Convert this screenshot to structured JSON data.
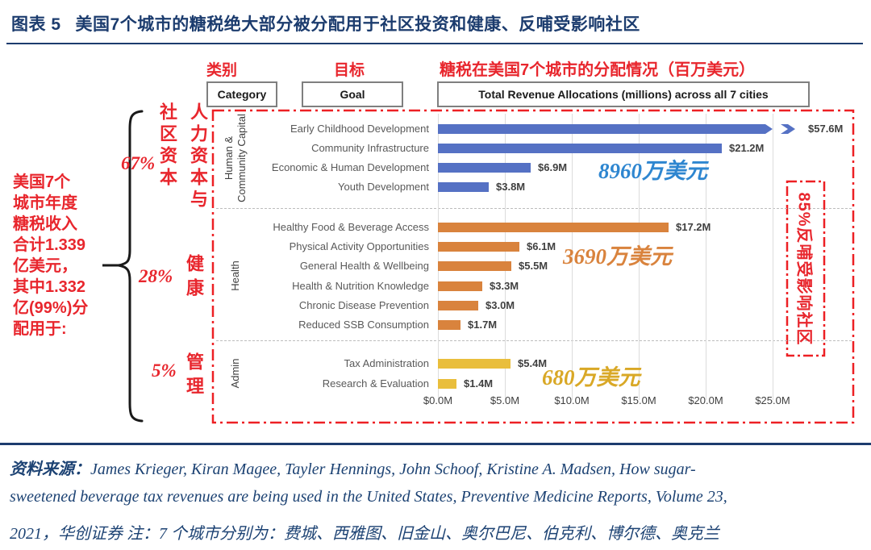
{
  "figure": {
    "label": "图表 5",
    "title": "美国7个城市的糖税绝大部分被分配用于社区投资和健康、反哺受影响社区"
  },
  "header": {
    "category_cn": "类别",
    "goal_cn": "目标",
    "allocation_cn": "糖税在美国7个城市的分配情况（百万美元）",
    "category_box": "Category",
    "goal_box": "Goal",
    "allocation_box": "Total Revenue Allocations (millions) across all 7 cities"
  },
  "left_note": {
    "text": "美国7个\n城市年度\n糖税收入\n合计1.339\n亿美元，\n其中1.332\n亿(99%)分\n配用于:"
  },
  "bracket_groups": [
    {
      "share": "67%",
      "label_vertical": "人力资本与\n社区资本"
    },
    {
      "share": "28%",
      "label_vertical": "健康"
    },
    {
      "share": "5%",
      "label_vertical": "管理"
    }
  ],
  "chart_data": {
    "type": "bar",
    "orientation": "horizontal",
    "title": "Total Revenue Allocations (millions) across all 7 cities",
    "x_axis": {
      "ticks": [
        "$0.0M",
        "$5.0M",
        "$10.0M",
        "$15.0M",
        "$20.0M",
        "$25.0M"
      ],
      "min": 0,
      "max": 25,
      "unit": "millions USD"
    },
    "grid": true,
    "groups": [
      {
        "name": "Human &\nCommunity Capital",
        "color": "#5571C4",
        "items": [
          {
            "label": "Early Childhood Development",
            "value": 57.6,
            "display": "$57.6M",
            "truncated": true
          },
          {
            "label": "Community Infrastructure",
            "value": 21.2,
            "display": "$21.2M"
          },
          {
            "label": "Economic & Human Development",
            "value": 6.9,
            "display": "$6.9M"
          },
          {
            "label": "Youth Development",
            "value": 3.8,
            "display": "$3.8M"
          }
        ]
      },
      {
        "name": "Health",
        "color": "#D9833D",
        "items": [
          {
            "label": "Healthy Food & Beverage Access",
            "value": 17.2,
            "display": "$17.2M"
          },
          {
            "label": "Physical Activity Opportunities",
            "value": 6.1,
            "display": "$6.1M"
          },
          {
            "label": "General Health & Wellbeing",
            "value": 5.5,
            "display": "$5.5M"
          },
          {
            "label": "Health & Nutrition Knowledge",
            "value": 3.3,
            "display": "$3.3M"
          },
          {
            "label": "Chronic Disease Prevention",
            "value": 3.0,
            "display": "$3.0M"
          },
          {
            "label": "Reduced SSB Consumption",
            "value": 1.7,
            "display": "$1.7M"
          }
        ]
      },
      {
        "name": "Admin",
        "color": "#E9BE3C",
        "items": [
          {
            "label": "Tax Administration",
            "value": 5.4,
            "display": "$5.4M"
          },
          {
            "label": "Research & Evaluation",
            "value": 1.4,
            "display": "$1.4M"
          }
        ]
      }
    ],
    "annotations": [
      {
        "text": "8960万美元",
        "color": "#2E86D0"
      },
      {
        "text": "3690万美元",
        "color": "#D9833D"
      },
      {
        "text": "680万美元",
        "color": "#D9A826"
      },
      {
        "text": "85%反哺受影响社区",
        "color": "#E8262D"
      }
    ]
  },
  "source": {
    "prefix": "资料来源：",
    "line1": "James Krieger, Kiran Magee, Tayler Hennings, John Schoof, Kristine A. Madsen, How sugar-",
    "line2": "sweetened beverage tax revenues are being used in the United States, Preventive Medicine Reports, Volume 23,",
    "line3": "2021，华创证券 注：7 个城市分别为：费城、西雅图、旧金山、奥尔巴尼、伯克利、博尔德、奥克兰"
  },
  "colors": {
    "title_navy": "#1C3C6E",
    "red": "#E8262D",
    "bar_blue": "#5571C4",
    "bar_orange": "#D9833D",
    "bar_gold": "#E9BE3C",
    "label_gray": "#595959"
  }
}
